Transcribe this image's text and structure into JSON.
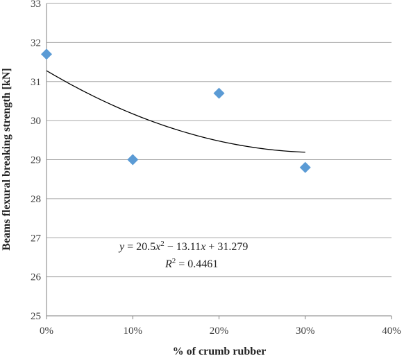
{
  "chart_data": {
    "type": "scatter",
    "xlabel": "% of crumb rubber",
    "ylabel": "Beams flexural breaking strength [kN]",
    "xlim": [
      0,
      0.4
    ],
    "ylim": [
      25,
      33
    ],
    "x_ticks": [
      "0%",
      "10%",
      "20%",
      "30%",
      "40%"
    ],
    "y_ticks": [
      "25",
      "26",
      "27",
      "28",
      "29",
      "30",
      "31",
      "32",
      "33"
    ],
    "grid": "horizontal",
    "series": [
      {
        "x": [
          0,
          0.1,
          0.2,
          0.3
        ],
        "values": [
          31.7,
          29.0,
          30.7,
          28.8
        ],
        "marker": "diamond",
        "color": "#5B9BD5"
      }
    ],
    "trendline": {
      "type": "polynomial",
      "coefficients": [
        20.5,
        -13.11,
        31.279
      ],
      "x_range": [
        0,
        0.3
      ],
      "color": "#000000",
      "equation": {
        "y_var": "y",
        "eq_start": " = 20.5",
        "x_var": "x",
        "sq": "2",
        "mid": " − 13.11",
        "end": " + 31.279"
      },
      "r2": {
        "r": "R",
        "sq": "2",
        "rest": " = 0.4461"
      }
    }
  }
}
